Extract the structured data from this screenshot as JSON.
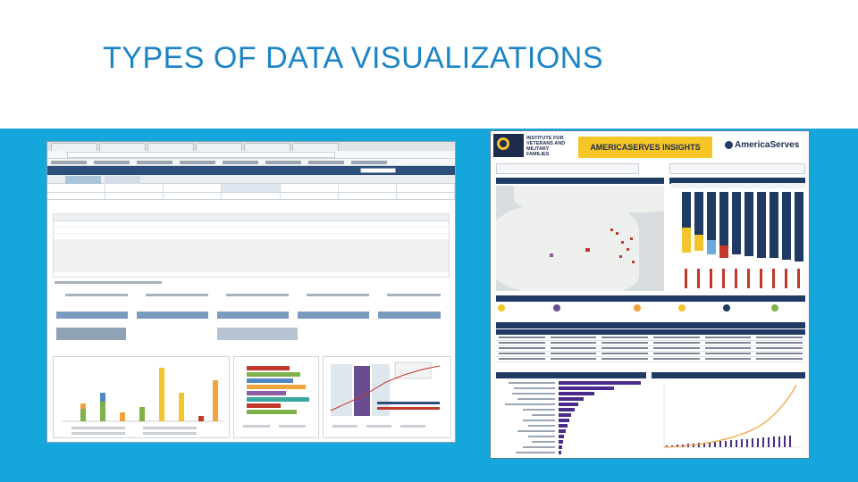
{
  "slide": {
    "title": "TYPES OF DATA VISUALIZATIONS"
  },
  "left_screenshot": {
    "description_icon": "browser-dashboard-thumbnail"
  },
  "right_screenshot": {
    "banner": "AMERICASERVES INSIGHTS",
    "org_name_lines": [
      "INSTITUTE FOR",
      "VETERANS AND",
      "MILITARY FAMILIES"
    ],
    "brand": "AmericaServes",
    "colors": {
      "navy": "#1f3a63",
      "gold": "#f6c627",
      "accent": "#15a7dc"
    }
  },
  "colors": {
    "title": "#1b84c7",
    "band": "#15a7dc",
    "background": "#ffffff"
  }
}
